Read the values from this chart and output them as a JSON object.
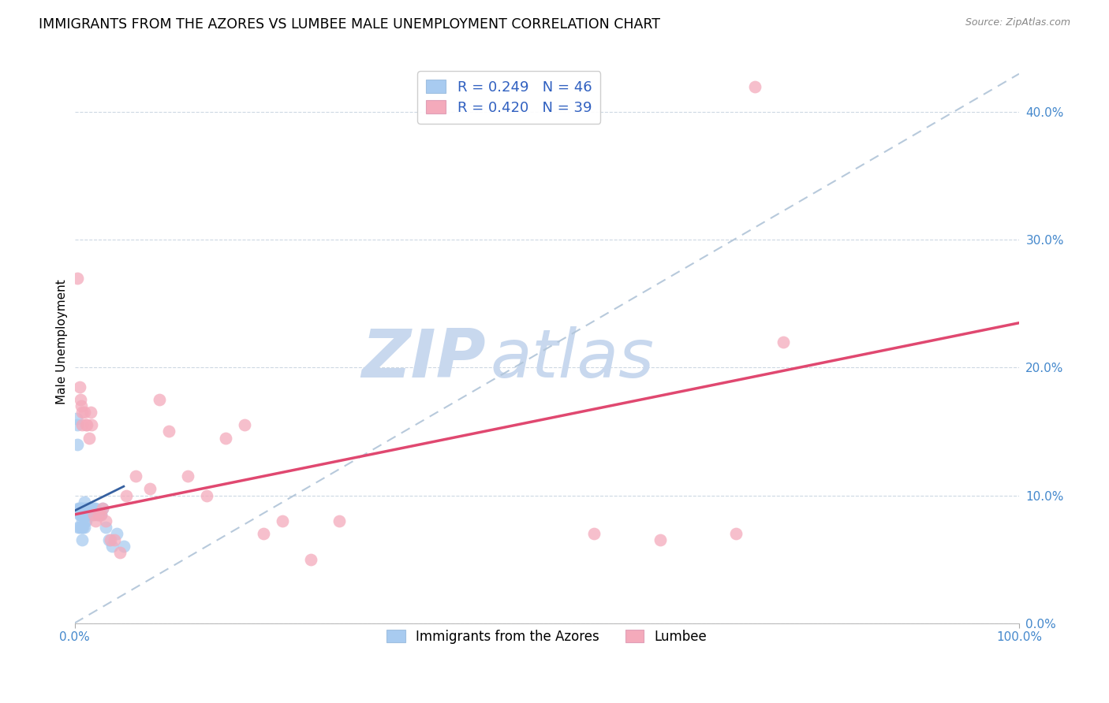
{
  "title": "IMMIGRANTS FROM THE AZORES VS LUMBEE MALE UNEMPLOYMENT CORRELATION CHART",
  "source": "Source: ZipAtlas.com",
  "ylabel": "Male Unemployment",
  "ytick_vals": [
    0.0,
    0.1,
    0.2,
    0.3,
    0.4
  ],
  "ytick_labels": [
    "0.0%",
    "10.0%",
    "20.0%",
    "30.0%",
    "40.0%"
  ],
  "xtick_vals": [
    0.0,
    1.0
  ],
  "xtick_labels": [
    "0.0%",
    "100.0%"
  ],
  "xlim": [
    0.0,
    1.0
  ],
  "ylim": [
    0.0,
    0.44
  ],
  "watermark_zip": "ZIP",
  "watermark_atlas": "atlas",
  "legend_blue_label": "R = 0.249   N = 46",
  "legend_pink_label": "R = 0.420   N = 39",
  "legend_bottom_blue": "Immigrants from the Azores",
  "legend_bottom_pink": "Lumbee",
  "blue_color": "#A8CBF0",
  "pink_color": "#F4AABB",
  "blue_line_color": "#3560A0",
  "pink_line_color": "#E04870",
  "dashed_line_color": "#B0C4D8",
  "title_fontsize": 12.5,
  "source_fontsize": 9,
  "axis_label_fontsize": 11,
  "tick_fontsize": 11,
  "azores_x": [
    0.002,
    0.003,
    0.003,
    0.004,
    0.004,
    0.005,
    0.005,
    0.005,
    0.006,
    0.006,
    0.007,
    0.007,
    0.007,
    0.008,
    0.008,
    0.008,
    0.008,
    0.009,
    0.009,
    0.009,
    0.01,
    0.01,
    0.01,
    0.011,
    0.011,
    0.012,
    0.012,
    0.013,
    0.013,
    0.014,
    0.015,
    0.016,
    0.017,
    0.018,
    0.019,
    0.02,
    0.022,
    0.024,
    0.026,
    0.028,
    0.03,
    0.033,
    0.036,
    0.04,
    0.045,
    0.052
  ],
  "azores_y": [
    0.16,
    0.14,
    0.155,
    0.09,
    0.075,
    0.085,
    0.09,
    0.075,
    0.09,
    0.085,
    0.09,
    0.085,
    0.075,
    0.085,
    0.08,
    0.075,
    0.065,
    0.09,
    0.085,
    0.075,
    0.095,
    0.085,
    0.075,
    0.09,
    0.08,
    0.085,
    0.08,
    0.09,
    0.085,
    0.09,
    0.09,
    0.09,
    0.09,
    0.09,
    0.085,
    0.09,
    0.09,
    0.085,
    0.085,
    0.085,
    0.09,
    0.075,
    0.065,
    0.06,
    0.07,
    0.06
  ],
  "lumbee_x": [
    0.003,
    0.005,
    0.006,
    0.007,
    0.008,
    0.008,
    0.01,
    0.012,
    0.013,
    0.015,
    0.017,
    0.018,
    0.02,
    0.022,
    0.025,
    0.028,
    0.03,
    0.033,
    0.038,
    0.042,
    0.048,
    0.055,
    0.065,
    0.08,
    0.09,
    0.1,
    0.12,
    0.14,
    0.16,
    0.18,
    0.2,
    0.22,
    0.25,
    0.28,
    0.55,
    0.62,
    0.7,
    0.72,
    0.75
  ],
  "lumbee_y": [
    0.27,
    0.185,
    0.175,
    0.17,
    0.165,
    0.155,
    0.165,
    0.155,
    0.155,
    0.145,
    0.165,
    0.155,
    0.085,
    0.08,
    0.085,
    0.085,
    0.09,
    0.08,
    0.065,
    0.065,
    0.055,
    0.1,
    0.115,
    0.105,
    0.175,
    0.15,
    0.115,
    0.1,
    0.145,
    0.155,
    0.07,
    0.08,
    0.05,
    0.08,
    0.07,
    0.065,
    0.07,
    0.42,
    0.22
  ],
  "azores_trendline_x": [
    0.0,
    0.052
  ],
  "azores_trendline_y": [
    0.088,
    0.107
  ],
  "lumbee_trendline_x": [
    0.0,
    1.0
  ],
  "lumbee_trendline_y": [
    0.085,
    0.235
  ],
  "dashed_line_x": [
    0.0,
    1.0
  ],
  "dashed_line_y": [
    0.0,
    0.43
  ]
}
